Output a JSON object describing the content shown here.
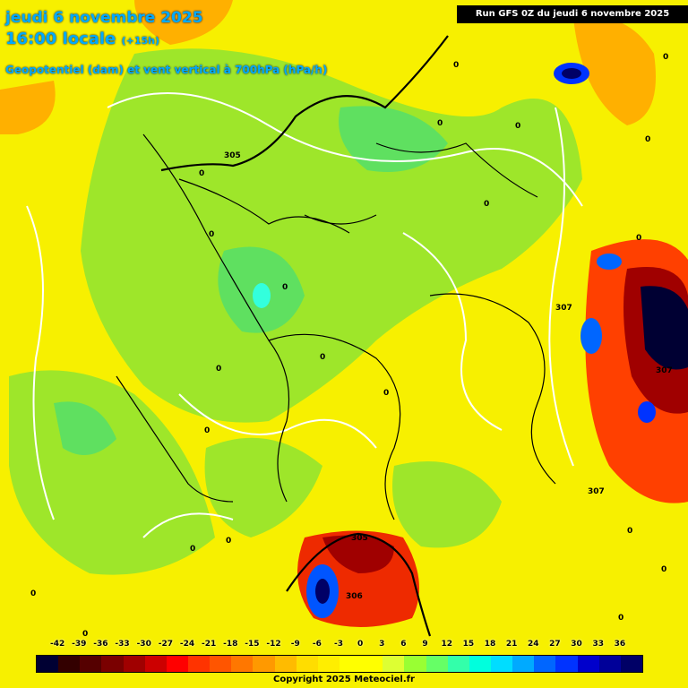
{
  "header": {
    "date_line": "jeudi 6 novembre 2025",
    "time_line": "16:00 locale",
    "time_offset": "(+15h)",
    "parameter_line": "Geopotentiel (dam) et vent vertical à 700hPa (hPa/h)",
    "run_info": "Run GFS 0Z du jeudi 6 novembre 2025"
  },
  "legend": {
    "ticks": [
      "-42",
      "-39",
      "-36",
      "-33",
      "-30",
      "-27",
      "-24",
      "-21",
      "-18",
      "-15",
      "-12",
      "-9",
      "-6",
      "-3",
      "0",
      "3",
      "6",
      "9",
      "12",
      "15",
      "18",
      "21",
      "24",
      "27",
      "30",
      "33",
      "36"
    ],
    "colors": [
      "#000033",
      "#330000",
      "#550000",
      "#7a0000",
      "#a00000",
      "#cc0000",
      "#ff0000",
      "#ff3300",
      "#ff5500",
      "#ff7700",
      "#ff9900",
      "#ffbb00",
      "#ffdd00",
      "#ffee00",
      "#ffff00",
      "#ffff00",
      "#ddff33",
      "#99ff33",
      "#66ff66",
      "#33ffaa",
      "#00ffdd",
      "#00ddff",
      "#00aaff",
      "#0066ff",
      "#0033ff",
      "#0000cc",
      "#000099",
      "#000066"
    ]
  },
  "contour_labels": [
    "305",
    "305",
    "306",
    "307",
    "307",
    "307",
    "0"
  ],
  "copyright": "Copyright 2025 Meteociel.fr",
  "colors": {
    "title": "#00aaff",
    "background_field": "#ffff00"
  }
}
